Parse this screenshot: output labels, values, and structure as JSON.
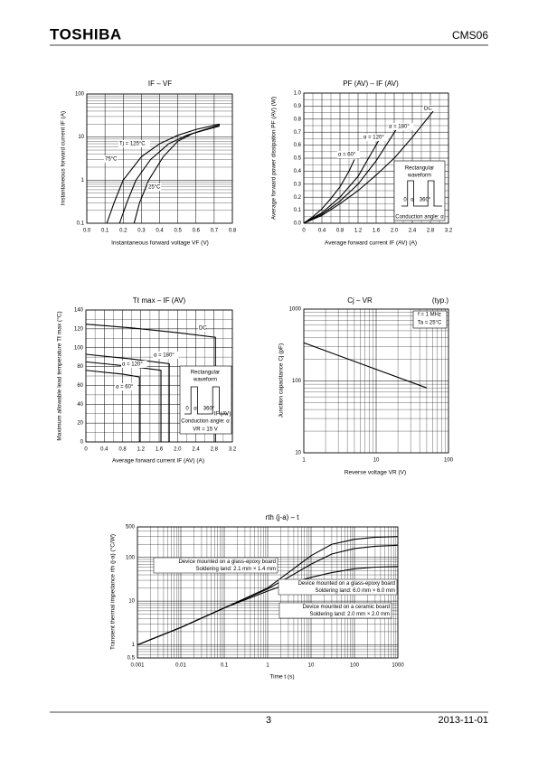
{
  "header": {
    "brand": "TOSHIBA",
    "part": "CMS06"
  },
  "footer": {
    "page": "3",
    "date": "2013-11-01"
  },
  "chart_data": [
    {
      "type": "line",
      "title": "IF – VF",
      "xlabel": "Instantaneous forward voltage   VF   (V)",
      "ylabel": "Instantaneous forward current   IF   (A)",
      "xlim": [
        0,
        0.8
      ],
      "xticks": [
        {
          "value": 0,
          "label": "0.0"
        },
        0.1,
        0.2,
        0.3,
        0.4,
        0.5,
        0.6,
        0.7,
        0.8
      ],
      "ylim": [
        0.1,
        100
      ],
      "yticks": [
        0.1,
        1,
        10,
        100
      ],
      "ylog": true,
      "grid": true,
      "color": "#000000",
      "series": [
        {
          "name": "Tj = 125°C",
          "x": [
            0.11,
            0.15,
            0.2,
            0.3,
            0.4,
            0.5,
            0.6,
            0.73
          ],
          "values": [
            0.1,
            0.3,
            1,
            3.5,
            7,
            11,
            15,
            20
          ]
        },
        {
          "name": "75°C",
          "x": [
            0.18,
            0.22,
            0.27,
            0.35,
            0.45,
            0.55,
            0.65,
            0.73
          ],
          "values": [
            0.1,
            0.3,
            1,
            3,
            7,
            11,
            15,
            19
          ]
        },
        {
          "name": "25°C",
          "x": [
            0.26,
            0.29,
            0.34,
            0.42,
            0.5,
            0.58,
            0.66,
            0.73
          ],
          "values": [
            0.1,
            0.3,
            1,
            3.5,
            8,
            12,
            15,
            18
          ]
        }
      ]
    },
    {
      "type": "line",
      "title": "PF (AV) – IF (AV)",
      "xlabel": "Average forward current   IF (AV)   (A)",
      "ylabel": "Average forward power dissipation   PF (AV)   (W)",
      "xlim": [
        0,
        3.2
      ],
      "xticks": [
        0,
        0.4,
        0.8,
        1.2,
        1.6,
        {
          "value": 2,
          "label": "2.0"
        },
        2.4,
        2.8,
        3.2
      ],
      "ylim": [
        0,
        1
      ],
      "yticks": [
        {
          "value": 0,
          "label": "0.0"
        },
        0.1,
        0.2,
        0.3,
        0.4,
        0.5,
        0.6,
        0.7,
        0.8,
        0.9,
        {
          "value": 1,
          "label": "1.0"
        }
      ],
      "grid": true,
      "minor_grid": true,
      "color": "#000000",
      "series": [
        {
          "name": "α = 60°",
          "x": [
            0,
            0.2,
            0.4,
            0.6,
            0.8,
            1.0,
            1.12
          ],
          "values": [
            0,
            0.05,
            0.11,
            0.19,
            0.28,
            0.4,
            0.49
          ]
        },
        {
          "name": "α = 120°",
          "x": [
            0,
            0.4,
            0.8,
            1.2,
            1.68
          ],
          "values": [
            0,
            0.08,
            0.2,
            0.36,
            0.65
          ]
        },
        {
          "name": "α = 180°",
          "x": [
            0,
            0.4,
            0.8,
            1.2,
            1.6,
            2.08
          ],
          "values": [
            0,
            0.07,
            0.17,
            0.3,
            0.48,
            0.74
          ]
        },
        {
          "name": "DC",
          "x": [
            0,
            0.4,
            0.8,
            1.2,
            1.6,
            2.0,
            2.4,
            2.86
          ],
          "values": [
            0,
            0.06,
            0.15,
            0.25,
            0.37,
            0.5,
            0.66,
            0.86
          ]
        }
      ],
      "annotations": [
        "Rectangular",
        "waveform",
        "0",
        "α",
        "360°",
        "Conduction angle: α"
      ]
    },
    {
      "type": "line",
      "title": "Tℓ max – IF (AV)",
      "xlabel": "Average forward current   IF (AV)   (A)",
      "ylabel": "Maximum allowable lead temperature   Tℓ max   (°C)",
      "xlim": [
        0,
        3.2
      ],
      "xticks": [
        0,
        0.4,
        0.8,
        1.2,
        1.6,
        {
          "value": 2,
          "label": "2.0"
        },
        2.4,
        2.8,
        3.2
      ],
      "ylim": [
        0,
        140
      ],
      "yticks": [
        0,
        20,
        40,
        60,
        80,
        100,
        120,
        140
      ],
      "grid": true,
      "minor_grid": true,
      "color": "#000000",
      "series": [
        {
          "name": "DC",
          "x": [
            0,
            1.0,
            2.0,
            2.83,
            2.83
          ],
          "values": [
            125,
            121,
            116,
            111,
            0
          ]
        },
        {
          "name": "α = 180°",
          "x": [
            0,
            1.0,
            1.82,
            1.82
          ],
          "values": [
            93,
            88,
            83,
            0
          ]
        },
        {
          "name": "α = 120°",
          "x": [
            0,
            1.0,
            1.64,
            1.64
          ],
          "values": [
            85,
            80,
            76,
            0
          ]
        },
        {
          "name": "α = 60°",
          "x": [
            0,
            0.8,
            1.17,
            1.17
          ],
          "values": [
            76,
            72,
            69,
            0
          ]
        }
      ],
      "annotations": [
        "Rectangular",
        "waveform",
        "0",
        "α",
        "360°",
        "IF (AV)",
        "Conduction angle: α",
        "VR = 15 V"
      ]
    },
    {
      "type": "line",
      "title": "Cj – VR",
      "note": "(typ.)",
      "xlabel": "Reverse voltage   VR   (V)",
      "ylabel": "Junction capacitance   Cj   (pF)",
      "xlim": [
        1,
        100
      ],
      "xticks": [
        1,
        10,
        100
      ],
      "xlog": true,
      "ylim": [
        10,
        1000
      ],
      "yticks": [
        10,
        100,
        1000
      ],
      "ylog": true,
      "grid": true,
      "color": "#000000",
      "series": [
        {
          "x": [
            1,
            50
          ],
          "values": [
            340,
            80
          ]
        }
      ],
      "annotations": [
        "f = 1 MHz",
        "Ta = 25°C"
      ]
    },
    {
      "type": "line",
      "title": "rth (j-a) – t",
      "xlabel": "Time   t   (s)",
      "ylabel": "Transient thermal impedance   rth (j-a)   (°C/W)",
      "xlim": [
        0.001,
        1000
      ],
      "xticks": [
        0.001,
        0.01,
        0.1,
        1,
        10,
        100,
        1000
      ],
      "xlog": true,
      "ylim": [
        0.5,
        500
      ],
      "yticks": [
        0.5,
        1,
        10,
        100,
        500
      ],
      "ylog": true,
      "grid": true,
      "color": "#000000",
      "x": [
        0.001,
        0.01,
        0.1,
        1,
        3,
        10,
        30,
        100,
        300,
        1000
      ],
      "series": [
        {
          "name": "Device mounted on a glass-epoxy board",
          "detail": "Soldering land: 2.1 mm × 1.4 mm",
          "values": [
            1,
            2.5,
            7,
            20,
            45,
            110,
            200,
            260,
            290,
            300
          ]
        },
        {
          "name": "Device mounted on a glass-epoxy board",
          "detail": "Soldering land: 6.0 mm × 6.0 mm",
          "values": [
            1,
            2.5,
            7,
            19,
            35,
            70,
            120,
            160,
            180,
            190
          ]
        },
        {
          "name": "Device mounted on a ceramic board",
          "detail": "Soldering land: 2.0 mm × 2.0 mm",
          "values": [
            1,
            2.5,
            7,
            17,
            25,
            35,
            45,
            55,
            60,
            62
          ]
        }
      ]
    }
  ]
}
